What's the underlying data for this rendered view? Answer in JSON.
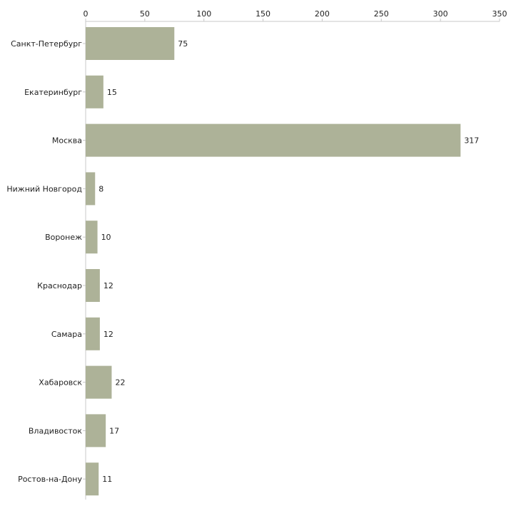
{
  "colors": {
    "bar": "#adb298",
    "axis": "#c8c8c8",
    "text": "#222222"
  },
  "chart_data": {
    "type": "bar",
    "orientation": "horizontal",
    "title": "",
    "xlabel": "",
    "ylabel": "",
    "xlim": [
      0,
      350
    ],
    "ticks": [
      0,
      50,
      100,
      150,
      200,
      250,
      300,
      350
    ],
    "grid": false,
    "legend": "none",
    "categories": [
      "Санкт-Петербург",
      "Екатеринбург",
      "Москва",
      "Нижний Новгород",
      "Воронеж",
      "Краснодар",
      "Самара",
      "Хабаровск",
      "Владивосток",
      "Ростов-на-Дону"
    ],
    "values": [
      75,
      15,
      317,
      8,
      10,
      12,
      12,
      22,
      17,
      11
    ]
  }
}
